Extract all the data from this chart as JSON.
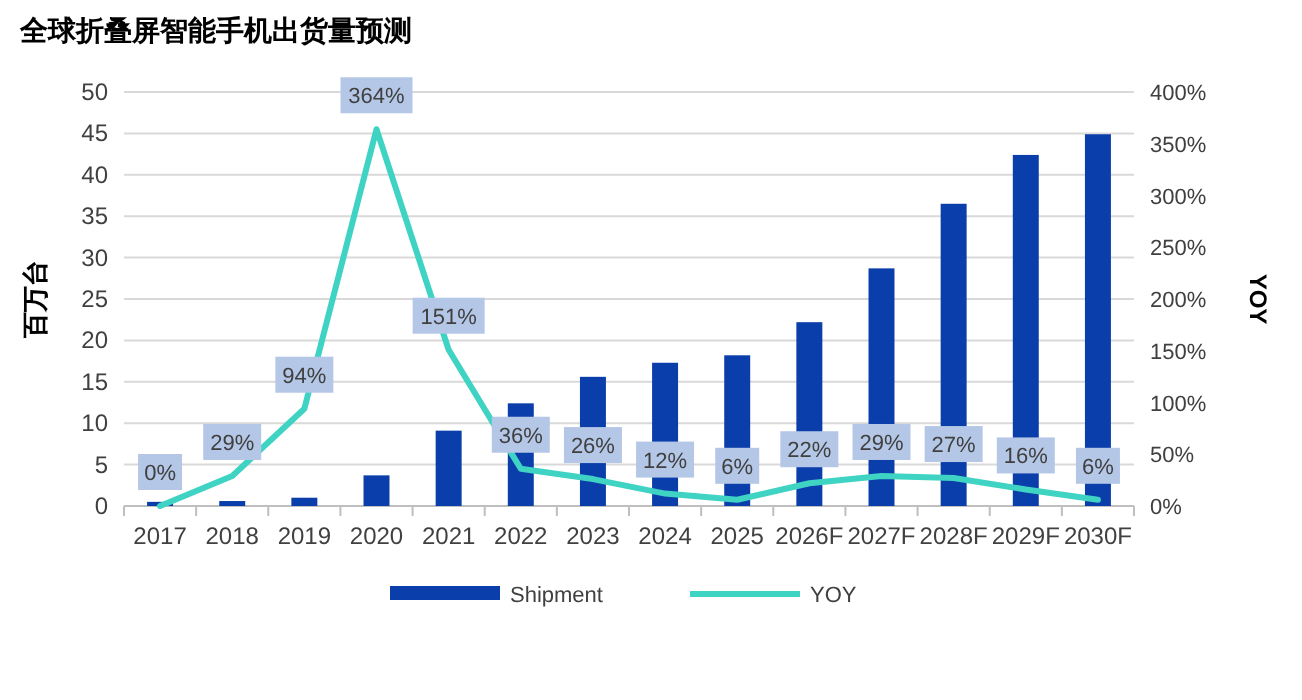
{
  "chart_data": {
    "type": "bar",
    "title": "全球折叠屏智能手机出货量预测",
    "ylabel": "百万台",
    "y2label": "YOY",
    "categories": [
      "2017",
      "2018",
      "2019",
      "2020",
      "2021",
      "2022",
      "2023",
      "2024",
      "2025",
      "2026F",
      "2027F",
      "2028F",
      "2029F",
      "2030F"
    ],
    "series": [
      {
        "name": "Shipment",
        "color": "#0a3eaa",
        "values": [
          0.5,
          0.6,
          1.0,
          3.7,
          9.1,
          12.4,
          15.6,
          17.3,
          18.2,
          22.2,
          28.7,
          36.5,
          42.4,
          44.9
        ]
      },
      {
        "name": "YOY",
        "type": "line",
        "axis": "y2",
        "color": "#3fd3c3",
        "values": [
          0,
          29,
          94,
          364,
          151,
          36,
          26,
          12,
          6,
          22,
          29,
          27,
          16,
          6
        ],
        "value_labels": [
          "0%",
          "29%",
          "94%",
          "364%",
          "151%",
          "36%",
          "26%",
          "12%",
          "6%",
          "22%",
          "29%",
          "27%",
          "16%",
          "6%"
        ]
      }
    ],
    "ylim": [
      0,
      50
    ],
    "yticks": [
      0,
      5,
      10,
      15,
      20,
      25,
      30,
      35,
      40,
      45,
      50
    ],
    "y2lim": [
      0,
      400
    ],
    "y2ticks": [
      {
        "value": 0,
        "label": "0%"
      },
      {
        "value": 50,
        "label": "50%"
      },
      {
        "value": 100,
        "label": "100%"
      },
      {
        "value": 150,
        "label": "150%"
      },
      {
        "value": 200,
        "label": "200%"
      },
      {
        "value": 250,
        "label": "250%"
      },
      {
        "value": 300,
        "label": "300%"
      },
      {
        "value": 350,
        "label": "350%"
      },
      {
        "value": 400,
        "label": "400%"
      }
    ],
    "grid": "y",
    "legend": "bottom",
    "marker": "none",
    "line_style": "solid"
  }
}
